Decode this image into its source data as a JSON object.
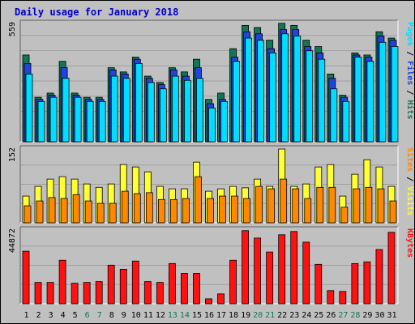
{
  "title": "Daily usage for January 2018",
  "colors": {
    "frame_bg": "#c0c0c0",
    "plot_bg": "#c0c0c0",
    "grid": "#a0a0a0",
    "title": "#0000cc",
    "hits": "#117755",
    "files": "#2244dd",
    "pages": "#00ddff",
    "visits": "#ffff33",
    "sites": "#ff8800",
    "kbytes": "#ff1111",
    "weekday": "#000000",
    "weekend": "#117755"
  },
  "x_labels": [
    "1",
    "2",
    "3",
    "4",
    "5",
    "6",
    "7",
    "8",
    "9",
    "10",
    "11",
    "12",
    "13",
    "14",
    "15",
    "16",
    "17",
    "18",
    "19",
    "20",
    "21",
    "22",
    "23",
    "24",
    "25",
    "26",
    "27",
    "28",
    "29",
    "30",
    "31"
  ],
  "weekend_days": [
    "6",
    "7",
    "13",
    "14",
    "20",
    "21",
    "27",
    "28"
  ],
  "chart_data": [
    {
      "type": "bar",
      "panel": "hits-files-pages",
      "ymax_label": "559",
      "ylim": [
        0,
        559
      ],
      "ylabel_parts": [
        {
          "text": "Pages",
          "color_key": "pages"
        },
        {
          "text": " / ",
          "color_key": "weekday"
        },
        {
          "text": "Files",
          "color_key": "files"
        },
        {
          "text": " / ",
          "color_key": "weekday"
        },
        {
          "text": "Hits",
          "color_key": "hits"
        }
      ],
      "categories": [
        "1",
        "2",
        "3",
        "4",
        "5",
        "6",
        "7",
        "8",
        "9",
        "10",
        "11",
        "12",
        "13",
        "14",
        "15",
        "16",
        "17",
        "18",
        "19",
        "20",
        "21",
        "22",
        "23",
        "24",
        "25",
        "26",
        "27",
        "28",
        "29",
        "30",
        "31"
      ],
      "series": [
        {
          "name": "Hits",
          "color_key": "hits",
          "values": [
            410,
            210,
            230,
            380,
            230,
            210,
            210,
            350,
            330,
            400,
            310,
            280,
            350,
            330,
            390,
            200,
            230,
            440,
            550,
            540,
            480,
            560,
            550,
            480,
            450,
            320,
            220,
            420,
            410,
            520,
            490
          ]
        },
        {
          "name": "Files",
          "color_key": "files",
          "values": [
            370,
            200,
            220,
            350,
            220,
            200,
            200,
            340,
            320,
            390,
            300,
            270,
            340,
            310,
            350,
            180,
            200,
            400,
            520,
            510,
            440,
            530,
            530,
            450,
            420,
            300,
            210,
            410,
            400,
            500,
            480
          ]
        },
        {
          "name": "Pages",
          "color_key": "pages",
          "values": [
            320,
            190,
            210,
            300,
            210,
            190,
            190,
            310,
            300,
            370,
            280,
            250,
            310,
            290,
            300,
            160,
            190,
            380,
            490,
            480,
            420,
            510,
            500,
            430,
            390,
            250,
            190,
            400,
            380,
            470,
            450
          ]
        }
      ]
    },
    {
      "type": "bar",
      "panel": "visits-sites",
      "ymax_label": "152",
      "ylim": [
        0,
        152
      ],
      "ylabel_parts": [
        {
          "text": "Sites",
          "color_key": "sites"
        },
        {
          "text": " / ",
          "color_key": "weekday"
        },
        {
          "text": "Visits",
          "color_key": "visits"
        }
      ],
      "categories": [
        "1",
        "2",
        "3",
        "4",
        "5",
        "6",
        "7",
        "8",
        "9",
        "10",
        "11",
        "12",
        "13",
        "14",
        "15",
        "16",
        "17",
        "18",
        "19",
        "20",
        "21",
        "22",
        "23",
        "24",
        "25",
        "26",
        "27",
        "28",
        "29",
        "30",
        "31"
      ],
      "series": [
        {
          "name": "Visits",
          "color_key": "visits",
          "values": [
            55,
            75,
            90,
            95,
            90,
            80,
            73,
            80,
            120,
            115,
            105,
            75,
            70,
            70,
            125,
            65,
            70,
            75,
            72,
            90,
            75,
            152,
            75,
            80,
            115,
            120,
            55,
            100,
            130,
            115,
            75
          ]
        },
        {
          "name": "Sites",
          "color_key": "sites",
          "values": [
            35,
            45,
            52,
            50,
            58,
            45,
            40,
            40,
            65,
            60,
            62,
            48,
            48,
            50,
            95,
            50,
            55,
            55,
            50,
            75,
            70,
            90,
            70,
            50,
            73,
            73,
            32,
            70,
            73,
            70,
            45
          ]
        }
      ]
    },
    {
      "type": "bar",
      "panel": "kbytes",
      "ymax_label": "44872",
      "ylim": [
        0,
        44872
      ],
      "ylabel_parts": [
        {
          "text": "KBytes",
          "color_key": "kbytes"
        }
      ],
      "categories": [
        "1",
        "2",
        "3",
        "4",
        "5",
        "6",
        "7",
        "8",
        "9",
        "10",
        "11",
        "12",
        "13",
        "14",
        "15",
        "16",
        "17",
        "18",
        "19",
        "20",
        "21",
        "22",
        "23",
        "24",
        "25",
        "26",
        "27",
        "28",
        "29",
        "30",
        "31"
      ],
      "series": [
        {
          "name": "KBytes",
          "color_key": "kbytes",
          "values": [
            32000,
            13000,
            13000,
            26500,
            12500,
            13000,
            13500,
            23500,
            21000,
            26000,
            13500,
            13000,
            24500,
            18500,
            18500,
            3000,
            6000,
            26500,
            44500,
            40000,
            31500,
            42000,
            44000,
            37500,
            24000,
            8000,
            7500,
            24500,
            25500,
            33000,
            43500
          ]
        }
      ]
    }
  ]
}
